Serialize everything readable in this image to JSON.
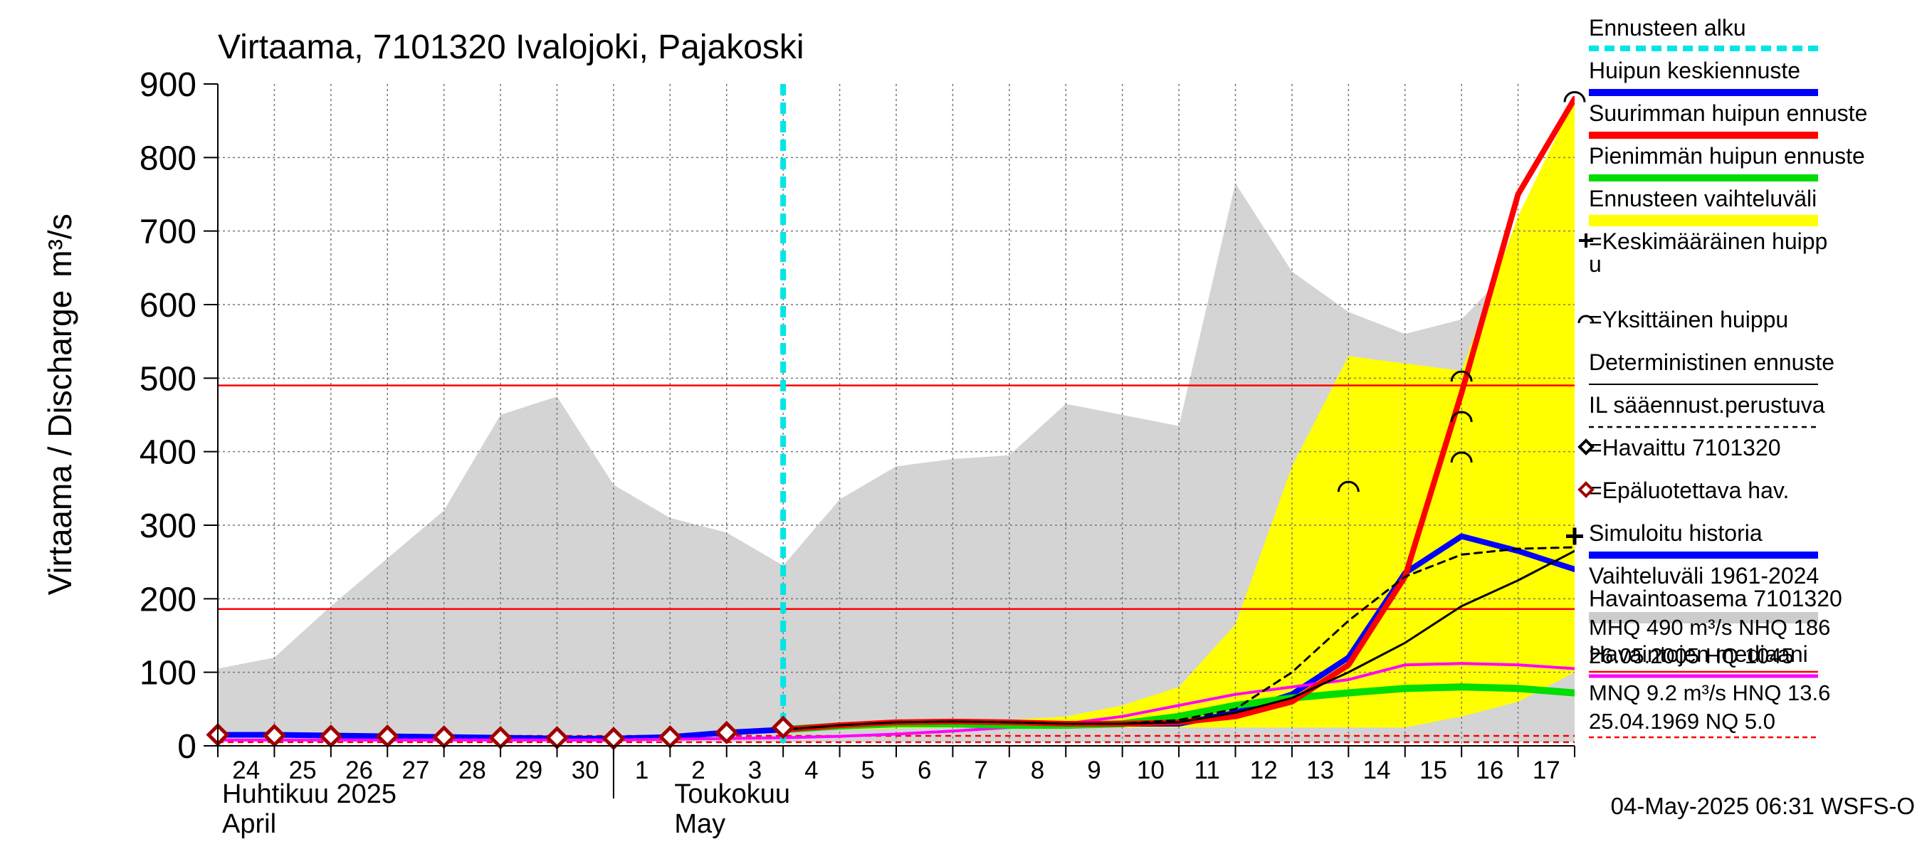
{
  "chart_data": {
    "type": "line",
    "title": "Virtaama, 7101320 Ivalojoki, Pajakoski",
    "ylabel": "Virtaama / Discharge",
    "yunit": "m³/s",
    "ylim": [
      0,
      900
    ],
    "yticks": [
      "0",
      "100",
      "200",
      "300",
      "400",
      "500",
      "600",
      "700",
      "800",
      "900"
    ],
    "xlim": [
      0,
      24
    ],
    "day_labels": [
      "24",
      "25",
      "26",
      "27",
      "28",
      "29",
      "30",
      "1",
      "2",
      "3",
      "4",
      "5",
      "6",
      "7",
      "8",
      "9",
      "10",
      "11",
      "12",
      "13",
      "14",
      "15",
      "16",
      "17"
    ],
    "month_labels": [
      {
        "fi": "Huhtikuu  2025",
        "en": "April"
      },
      {
        "fi": "Toukokuu",
        "en": "May"
      }
    ],
    "forecast_start": 10.0,
    "grid": true,
    "timestamp": "04-May-2025 06:31 WSFS-O",
    "thresholds": [
      {
        "value": 490,
        "style": "solid"
      },
      {
        "value": 186,
        "style": "solid"
      },
      {
        "value": 13.6,
        "style": "dashed"
      },
      {
        "value": 5.0,
        "style": "dashed"
      }
    ],
    "variation_range": {
      "x": [
        0,
        1,
        2,
        3,
        4,
        5,
        6,
        7,
        8,
        9,
        10,
        11,
        12,
        13,
        14,
        15,
        16,
        17,
        18,
        19,
        20,
        21,
        22,
        23,
        24
      ],
      "upper": [
        105,
        120,
        190,
        255,
        320,
        450,
        475,
        355,
        310,
        290,
        245,
        335,
        380,
        390,
        395,
        465,
        450,
        435,
        765,
        645,
        590,
        560,
        580,
        660,
        670
      ],
      "lower": [
        5,
        5,
        5,
        5,
        5,
        5,
        5,
        5,
        5,
        5,
        5,
        5,
        5,
        5,
        5,
        5,
        5,
        5,
        5,
        5,
        5,
        5,
        5,
        5,
        5
      ]
    },
    "forecast_range": {
      "x": [
        10,
        11,
        12,
        13,
        14,
        15,
        16,
        17,
        18,
        19,
        20,
        21,
        22,
        23,
        24
      ],
      "upper": [
        20,
        25,
        30,
        32,
        35,
        40,
        55,
        80,
        165,
        380,
        530,
        520,
        510,
        720,
        880
      ],
      "lower": [
        20,
        22,
        24,
        25,
        25,
        25,
        25,
        25,
        25,
        25,
        25,
        25,
        40,
        60,
        100
      ]
    },
    "series": [
      {
        "name": "Simuloitu historia",
        "color": "#0000ff",
        "width": 8,
        "dash": "",
        "x": [
          0,
          1,
          2,
          3,
          4,
          5,
          6,
          7,
          8,
          9,
          10,
          11,
          12,
          13,
          14,
          15,
          16,
          17,
          18,
          19,
          20,
          21,
          22,
          23,
          24
        ],
        "values": [
          15,
          15,
          14,
          13,
          12,
          11,
          10,
          10,
          12,
          18,
          22,
          28,
          30,
          32,
          30,
          30,
          30,
          30,
          45,
          70,
          120,
          235,
          285,
          265,
          240
        ]
      },
      {
        "name": "Havaintojen mediaani",
        "color": "#ff00ff",
        "width": 4,
        "dash": "",
        "x": [
          0,
          1,
          2,
          3,
          4,
          5,
          6,
          7,
          8,
          9,
          10,
          11,
          12,
          13,
          14,
          15,
          16,
          17,
          18,
          19,
          20,
          21,
          22,
          23,
          24
        ],
        "values": [
          8,
          8,
          8,
          8,
          8,
          8,
          8,
          8,
          9,
          10,
          11,
          13,
          16,
          20,
          25,
          30,
          40,
          55,
          70,
          80,
          90,
          110,
          112,
          110,
          105
        ]
      },
      {
        "name": "Pienimmän huipun ennuste",
        "color": "#00dd00",
        "width": 10,
        "dash": "",
        "x": [
          10,
          11,
          12,
          13,
          14,
          15,
          16,
          17,
          18,
          19,
          20,
          21,
          22,
          23,
          24
        ],
        "values": [
          22,
          27,
          30,
          30,
          28,
          28,
          30,
          40,
          55,
          65,
          72,
          78,
          80,
          78,
          72
        ]
      },
      {
        "name": "Suurimman huipun ennuste",
        "color": "#ff0000",
        "width": 8,
        "dash": "",
        "x": [
          10,
          11,
          12,
          13,
          14,
          15,
          16,
          17,
          18,
          19,
          20,
          21,
          22,
          23,
          24
        ],
        "values": [
          22,
          28,
          32,
          33,
          32,
          30,
          30,
          32,
          40,
          60,
          110,
          230,
          480,
          750,
          880
        ]
      },
      {
        "name": "IL sääennust.perustuva",
        "color": "#000000",
        "width": 3,
        "dash": "10,8",
        "x": [
          10,
          11,
          12,
          13,
          14,
          15,
          16,
          17,
          18,
          19,
          20,
          21,
          22,
          23,
          24
        ],
        "values": [
          22,
          28,
          32,
          33,
          32,
          30,
          30,
          35,
          50,
          100,
          170,
          230,
          260,
          268,
          270
        ]
      },
      {
        "name": "Deterministinen ennuste",
        "color": "#000000",
        "width": 3,
        "dash": "",
        "x": [
          10,
          11,
          12,
          13,
          14,
          15,
          16,
          17,
          18,
          19,
          20,
          21,
          22,
          23,
          24
        ],
        "values": [
          22,
          28,
          32,
          33,
          32,
          30,
          30,
          32,
          45,
          65,
          100,
          140,
          190,
          225,
          265
        ]
      }
    ],
    "observed_points": {
      "x": [
        0,
        1,
        2,
        3,
        4,
        5,
        6,
        7,
        8,
        9,
        10
      ],
      "values": [
        15,
        14,
        13,
        13,
        12,
        11,
        11,
        10,
        12,
        18,
        25
      ]
    },
    "mean_peak": {
      "x": 24.0,
      "value": 285
    },
    "individual_peaks": [
      {
        "x": 20.0,
        "value": 355
      },
      {
        "x": 22.0,
        "value": 505
      },
      {
        "x": 22.0,
        "value": 450
      },
      {
        "x": 22.0,
        "value": 395
      },
      {
        "x": 24.0,
        "value": 885
      }
    ],
    "legend": {
      "items": [
        {
          "label": "Ennusteen alku",
          "swatch": "dashed",
          "color": "#00e5e5"
        },
        {
          "label": "Huipun keskiennuste",
          "swatch": "thick",
          "color": "#0000ff"
        },
        {
          "label": "Suurimman huipun ennuste",
          "swatch": "thick",
          "color": "#ff0000"
        },
        {
          "label": "Pienimmän huipun ennuste",
          "swatch": "thick",
          "color": "#00dd00"
        },
        {
          "label": "Ennusteen vaihteluväli",
          "swatch": "band",
          "color": "#ffff00"
        },
        {
          "label": "=Keskimääräinen huipp",
          "label2": "u",
          "swatch": "plus",
          "color": "#000000"
        },
        {
          "label": "=Yksittäinen huippu",
          "swatch": "arc",
          "color": "#000000"
        },
        {
          "label": "Deterministinen ennuste",
          "swatch": "thin",
          "color": "#000000"
        },
        {
          "label": "IL sääennust.perustuva",
          "swatch": "dotted",
          "color": "#000000"
        },
        {
          "label": "=Havaittu 7101320",
          "swatch": "diamond",
          "color": "#000000"
        },
        {
          "label": "=Epäluotettava hav.",
          "swatch": "diamond",
          "color": "#a00000"
        },
        {
          "label": "Simuloitu historia",
          "swatch": "thick",
          "color": "#0000ff"
        },
        {
          "label": "Vaihteluväli 1961-2024",
          "label2": " Havaintoasema 7101320",
          "swatch": "band",
          "color": "#cccccc"
        },
        {
          "label": "Havaintojen mediaani",
          "swatch": "medium",
          "color": "#ff00ff"
        }
      ],
      "stats": [
        {
          "line1": "MHQ  490 m³/s NHQ  186",
          "line2": "26.05.2005 HQ 1045",
          "rule": "solid"
        },
        {
          "line1": "MNQ  9.2 m³/s HNQ 13.6",
          "line2": "25.04.1969 NQ  5.0",
          "rule": "dashed"
        }
      ]
    }
  }
}
